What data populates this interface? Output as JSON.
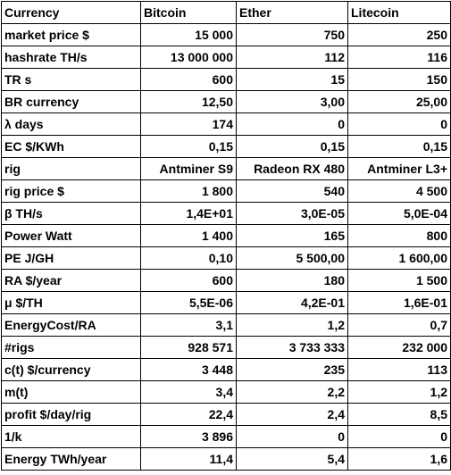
{
  "table": {
    "columns": [
      "Currency",
      "Bitcoin",
      "Ether",
      "Litecoin"
    ],
    "rows": [
      {
        "label": "market price $",
        "values": [
          "15 000",
          "750",
          "250"
        ]
      },
      {
        "label": "hashrate TH/s",
        "values": [
          "13 000 000",
          "112",
          "116"
        ]
      },
      {
        "label": "TR s",
        "values": [
          "600",
          "15",
          "150"
        ]
      },
      {
        "label": "BR currency",
        "values": [
          "12,50",
          "3,00",
          "25,00"
        ]
      },
      {
        "label": "λ  days",
        "values": [
          "174",
          "0",
          "0"
        ]
      },
      {
        "label": "EC $/KWh",
        "values": [
          "0,15",
          "0,15",
          "0,15"
        ]
      },
      {
        "label": "rig",
        "values": [
          "Antminer S9",
          "Radeon RX 480",
          "Antminer L3+"
        ]
      },
      {
        "label": "rig price $",
        "values": [
          "1 800",
          "540",
          "4 500"
        ]
      },
      {
        "label": "β  TH/s",
        "values": [
          "1,4E+01",
          "3,0E-05",
          "5,0E-04"
        ]
      },
      {
        "label": "Power Watt",
        "values": [
          "1 400",
          "165",
          "800"
        ]
      },
      {
        "label": " PE  J/GH",
        "values": [
          "0,10",
          "5 500,00",
          "1 600,00"
        ]
      },
      {
        "label": " RA $/year",
        "values": [
          "600",
          "180",
          "1 500"
        ]
      },
      {
        "label": "μ  $/TH",
        "values": [
          "5,5E-06",
          "4,2E-01",
          "1,6E-01"
        ]
      },
      {
        "label": "EnergyCost/RA",
        "values": [
          "3,1",
          "1,2",
          "0,7"
        ]
      },
      {
        "label": "#rigs",
        "values": [
          "928 571",
          "3 733 333",
          "232 000"
        ]
      },
      {
        "label": "c(t) $/currency",
        "values": [
          "3 448",
          "235",
          "113"
        ]
      },
      {
        "label": "m(t)",
        "values": [
          "3,4",
          "2,2",
          "1,2"
        ]
      },
      {
        "label": "profit  $/day/rig",
        "values": [
          "22,4",
          "2,4",
          "8,5"
        ]
      },
      {
        "label": "1/k",
        "values": [
          "3 896",
          "0",
          "0"
        ]
      },
      {
        "label": "Energy  TWh/year",
        "values": [
          "11,4",
          "5,4",
          "1,6"
        ]
      }
    ]
  }
}
